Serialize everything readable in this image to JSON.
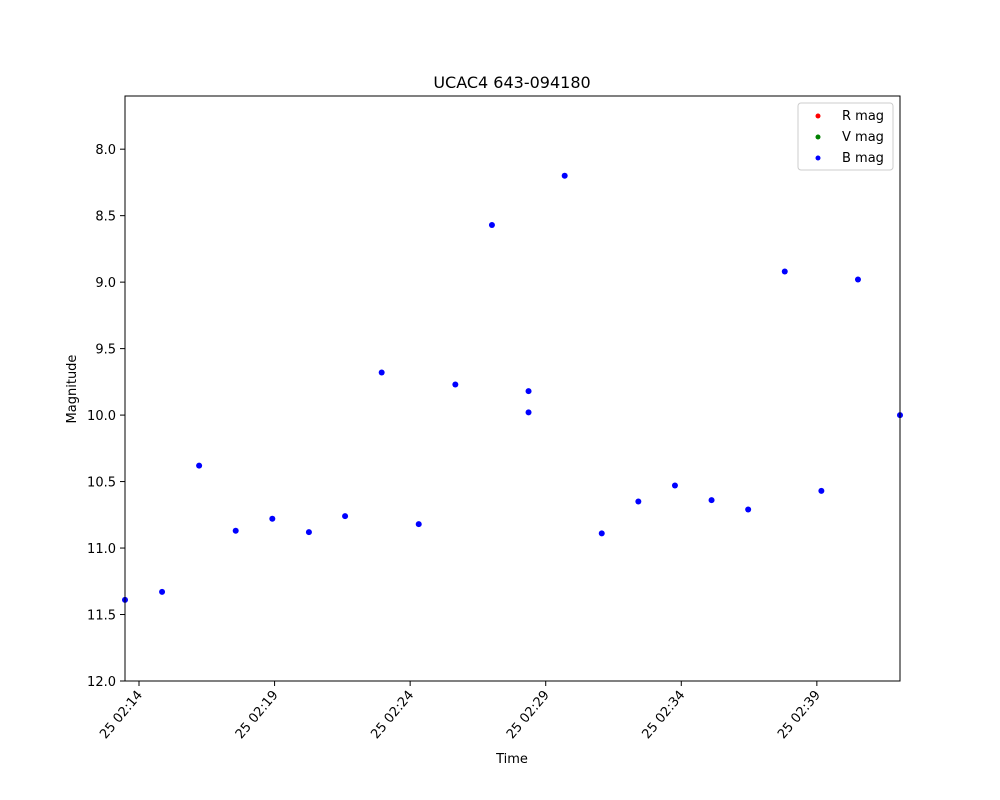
{
  "chart_data": {
    "type": "scatter",
    "title": "UCAC4 643-094180",
    "xlabel": "Time",
    "ylabel": "Magnitude",
    "y_inverted": true,
    "ylim": [
      12.0,
      7.6
    ],
    "xlim": [
      "25 02:13:29",
      "25 02:42:04"
    ],
    "x_ticks": [
      "25 02:14",
      "25 02:19",
      "25 02:24",
      "25 02:29",
      "25 02:34",
      "25 02:39"
    ],
    "y_ticks": [
      "8.0",
      "8.5",
      "9.0",
      "9.5",
      "10.0",
      "10.5",
      "11.0",
      "11.5",
      "12.0"
    ],
    "legend": {
      "position": "top-right"
    },
    "series": [
      {
        "name": "R mag",
        "color": "#ff0000",
        "points": []
      },
      {
        "name": "V mag",
        "color": "#008000",
        "points": []
      },
      {
        "name": "B mag",
        "color": "#0000ff",
        "points": [
          {
            "x": "25 02:13:29",
            "y": 11.39
          },
          {
            "x": "25 02:14:51",
            "y": 11.33
          },
          {
            "x": "25 02:16:13",
            "y": 10.38
          },
          {
            "x": "25 02:17:34",
            "y": 10.87
          },
          {
            "x": "25 02:18:55",
            "y": 10.78
          },
          {
            "x": "25 02:20:16",
            "y": 10.88
          },
          {
            "x": "25 02:21:36",
            "y": 10.76
          },
          {
            "x": "25 02:22:57",
            "y": 9.68
          },
          {
            "x": "25 02:24:19",
            "y": 10.82
          },
          {
            "x": "25 02:25:40",
            "y": 9.77
          },
          {
            "x": "25 02:27:01",
            "y": 8.57
          },
          {
            "x": "25 02:28:22",
            "y": 9.82
          },
          {
            "x": "25 02:28:22",
            "y": 9.98
          },
          {
            "x": "25 02:29:42",
            "y": 8.2
          },
          {
            "x": "25 02:31:04",
            "y": 10.89
          },
          {
            "x": "25 02:32:25",
            "y": 10.65
          },
          {
            "x": "25 02:33:46",
            "y": 10.53
          },
          {
            "x": "25 02:35:07",
            "y": 10.64
          },
          {
            "x": "25 02:36:28",
            "y": 10.71
          },
          {
            "x": "25 02:37:49",
            "y": 8.92
          },
          {
            "x": "25 02:39:10",
            "y": 10.57
          },
          {
            "x": "25 02:40:31",
            "y": 8.98
          },
          {
            "x": "25 02:42:04",
            "y": 10.0
          }
        ]
      }
    ]
  }
}
